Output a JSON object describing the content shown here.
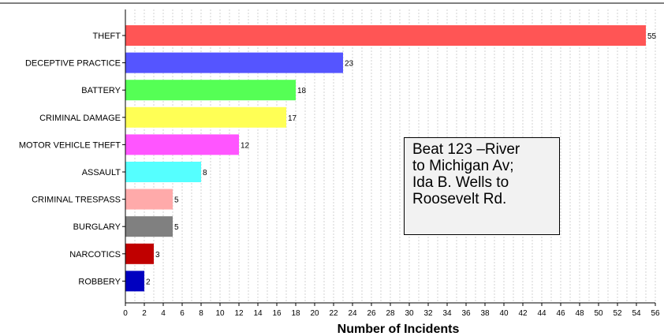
{
  "chart_data": {
    "type": "bar",
    "orientation": "horizontal",
    "categories": [
      "THEFT",
      "DECEPTIVE PRACTICE",
      "BATTERY",
      "CRIMINAL DAMAGE",
      "MOTOR VEHICLE THEFT",
      "ASSAULT",
      "CRIMINAL TRESPASS",
      "BURGLARY",
      "NARCOTICS",
      "ROBBERY"
    ],
    "values": [
      55,
      23,
      18,
      17,
      12,
      8,
      5,
      5,
      3,
      2
    ],
    "colors": [
      "#ff5555",
      "#5555ff",
      "#55ff55",
      "#ffff55",
      "#ff55ff",
      "#55ffff",
      "#ffaaaa",
      "#808080",
      "#c00000",
      "#0000c0"
    ],
    "title": "",
    "xlabel": "Number of Incidents",
    "ylabel": "",
    "xlim": [
      0,
      56
    ],
    "x_ticks": [
      0,
      2,
      4,
      6,
      8,
      10,
      12,
      14,
      16,
      18,
      20,
      22,
      24,
      26,
      28,
      30,
      32,
      34,
      36,
      38,
      40,
      42,
      44,
      46,
      48,
      50,
      52,
      54,
      56
    ],
    "grid": "vertical dashed",
    "annotation": {
      "lines": [
        "Beat 123 –River",
        "to Michigan Av;",
        "Ida B. Wells to",
        "Roosevelt Rd."
      ]
    }
  }
}
